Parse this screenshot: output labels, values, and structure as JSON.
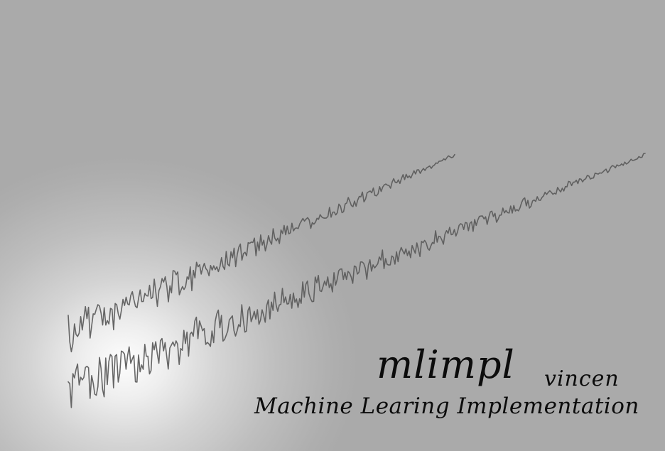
{
  "banner": {
    "title": "mlimpl",
    "author": "vincen",
    "subtitle": "Machine Learing Implementation",
    "background_color": "#aaaaaa",
    "glow_color": "#fdfdfd",
    "wave_color": "#5a5a5a",
    "text_color": "#0c0c0c"
  }
}
